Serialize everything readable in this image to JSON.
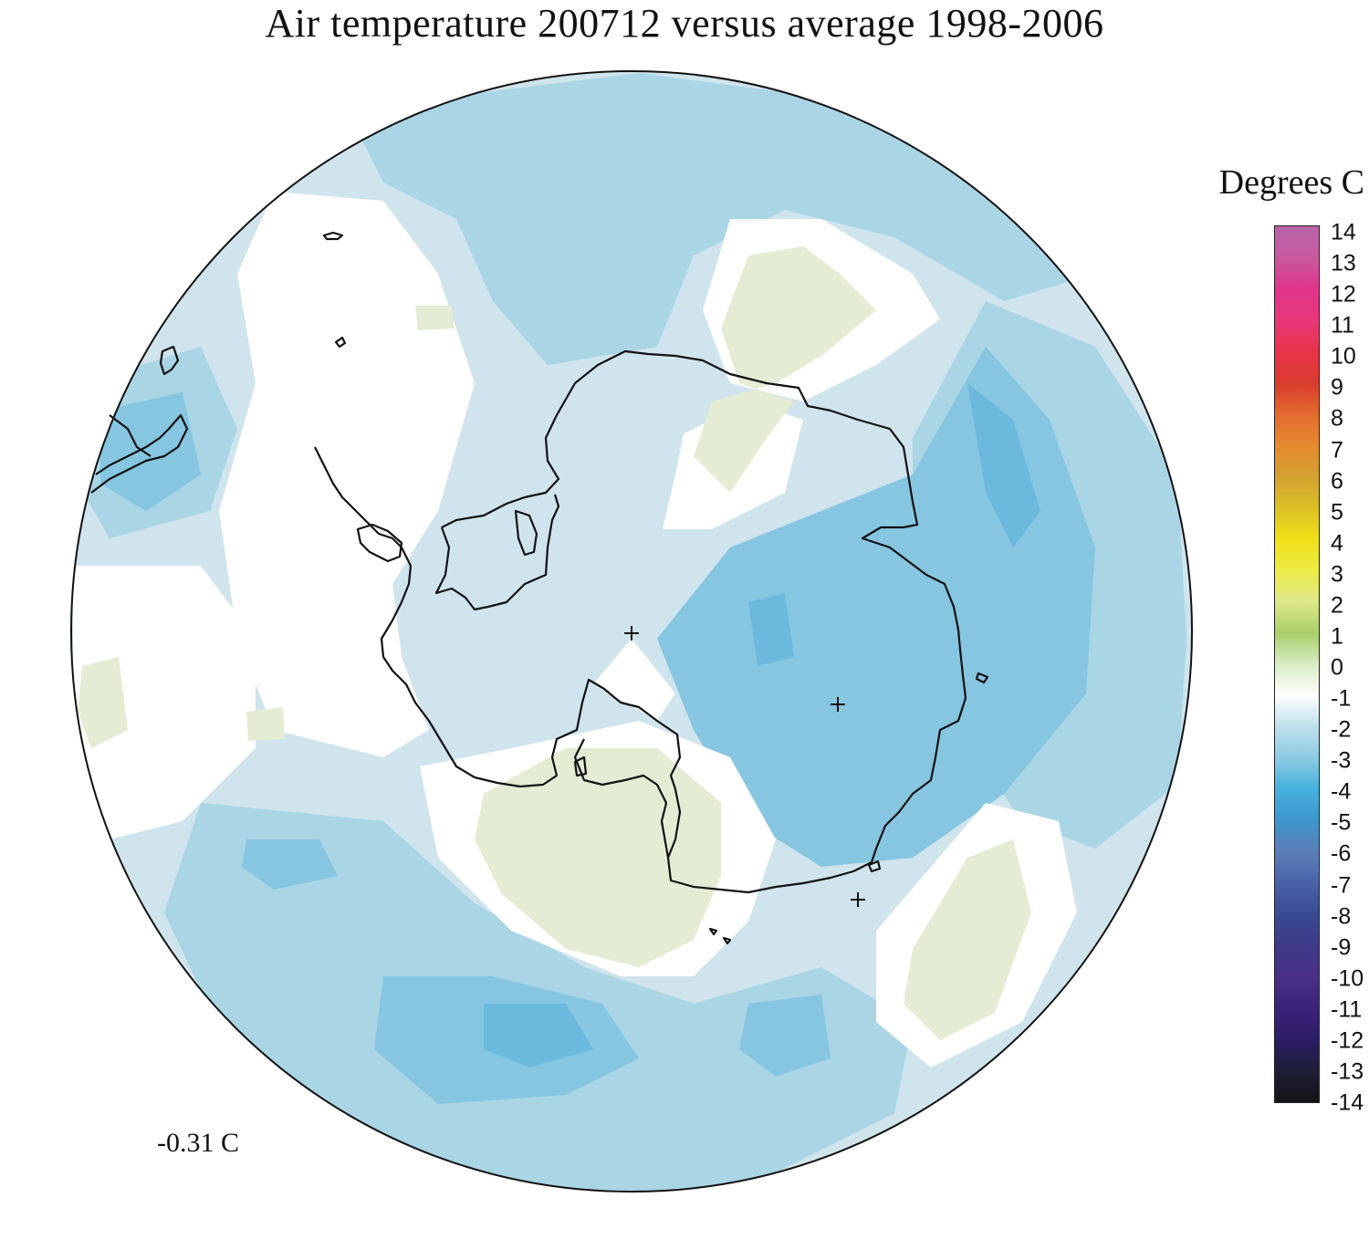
{
  "title": "Air temperature 200712 versus average 1998-2006",
  "legend": {
    "title": "Degrees C",
    "ticks": [
      "14",
      "13",
      "12",
      "11",
      "10",
      "9",
      "8",
      "7",
      "6",
      "5",
      "4",
      "3",
      "2",
      "1",
      "0",
      "-1",
      "-2",
      "-3",
      "-4",
      "-5",
      "-6",
      "-7",
      "-8",
      "-9",
      "-10",
      "-11",
      "-12",
      "-13",
      "-14"
    ],
    "colors": [
      "#b864a8",
      "#c75a9e",
      "#e0358a",
      "#e8377a",
      "#e8344a",
      "#d93b2e",
      "#e36a2e",
      "#e58a2f",
      "#d4a030",
      "#dcc024",
      "#f0e018",
      "#ecec44",
      "#dde88a",
      "#a9cf6a",
      "#d8ecc4",
      "#ffffff",
      "#bfe0ec",
      "#8ccbe2",
      "#45b1de",
      "#3f95cd",
      "#5b7fb9",
      "#4a62a8",
      "#3a4b93",
      "#3d3a86",
      "#4a2f86",
      "#3b237a",
      "#2c1c66",
      "#1e1e38",
      "#141416"
    ]
  },
  "annotation": {
    "mean_anomaly": "-0.31 C"
  },
  "map": {
    "projection": "south polar stereographic",
    "field": "air temperature anomaly",
    "units": "Degrees C",
    "pole_marker": "+",
    "colors": {
      "warm_anomaly": "#e4ecd4",
      "zero": "#ffffff",
      "slight_cool": "#cfe4ec",
      "cool": "#a9d5e5",
      "cooler": "#86c6e1",
      "coldest": "#6bbadd",
      "coastline": "#111111"
    }
  }
}
